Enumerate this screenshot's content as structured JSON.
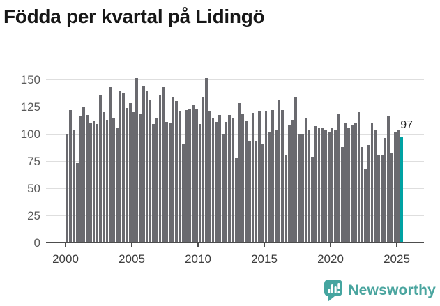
{
  "title": "Födda per kvartal på Lidingö",
  "chart_data": {
    "type": "bar",
    "title": "Födda per kvartal på Lidingö",
    "x_unit": "quarter",
    "x_start": "2000 Q1",
    "x_end": "2025 Q2",
    "x_tick_labels": [
      "2000",
      "2005",
      "2010",
      "2015",
      "2020",
      "2025"
    ],
    "y_ticks": [
      0,
      25,
      50,
      75,
      100,
      125,
      150
    ],
    "ylim": [
      0,
      150
    ],
    "grid": "horizontal",
    "legend": "none",
    "bar_color": "#6a6a6f",
    "highlight_color": "#00a2a3",
    "highlight_index": 101,
    "highlighted_last_value": 97,
    "values": [
      100,
      122,
      104,
      73,
      116,
      125,
      117,
      110,
      112,
      109,
      135,
      120,
      113,
      143,
      115,
      106,
      140,
      138,
      124,
      128,
      120,
      151,
      118,
      144,
      140,
      131,
      109,
      115,
      135,
      143,
      111,
      110,
      134,
      130,
      121,
      91,
      122,
      123,
      127,
      123,
      109,
      134,
      151,
      121,
      115,
      111,
      117,
      100,
      111,
      117,
      115,
      78,
      128,
      118,
      112,
      93,
      119,
      93,
      121,
      91,
      121,
      102,
      122,
      103,
      131,
      122,
      80,
      108,
      113,
      134,
      100,
      100,
      114,
      103,
      79,
      107,
      106,
      105,
      104,
      101,
      105,
      104,
      118,
      88,
      110,
      106,
      108,
      110,
      120,
      88,
      68,
      90,
      110,
      103,
      81,
      81,
      96,
      116,
      82,
      101,
      104,
      97
    ]
  },
  "annotation": {
    "last_value_label": "97"
  },
  "logo": {
    "text": "Newsworthy",
    "color": "#4aa59f",
    "icon": "newsworthy-bar-chart-bubble-icon"
  }
}
